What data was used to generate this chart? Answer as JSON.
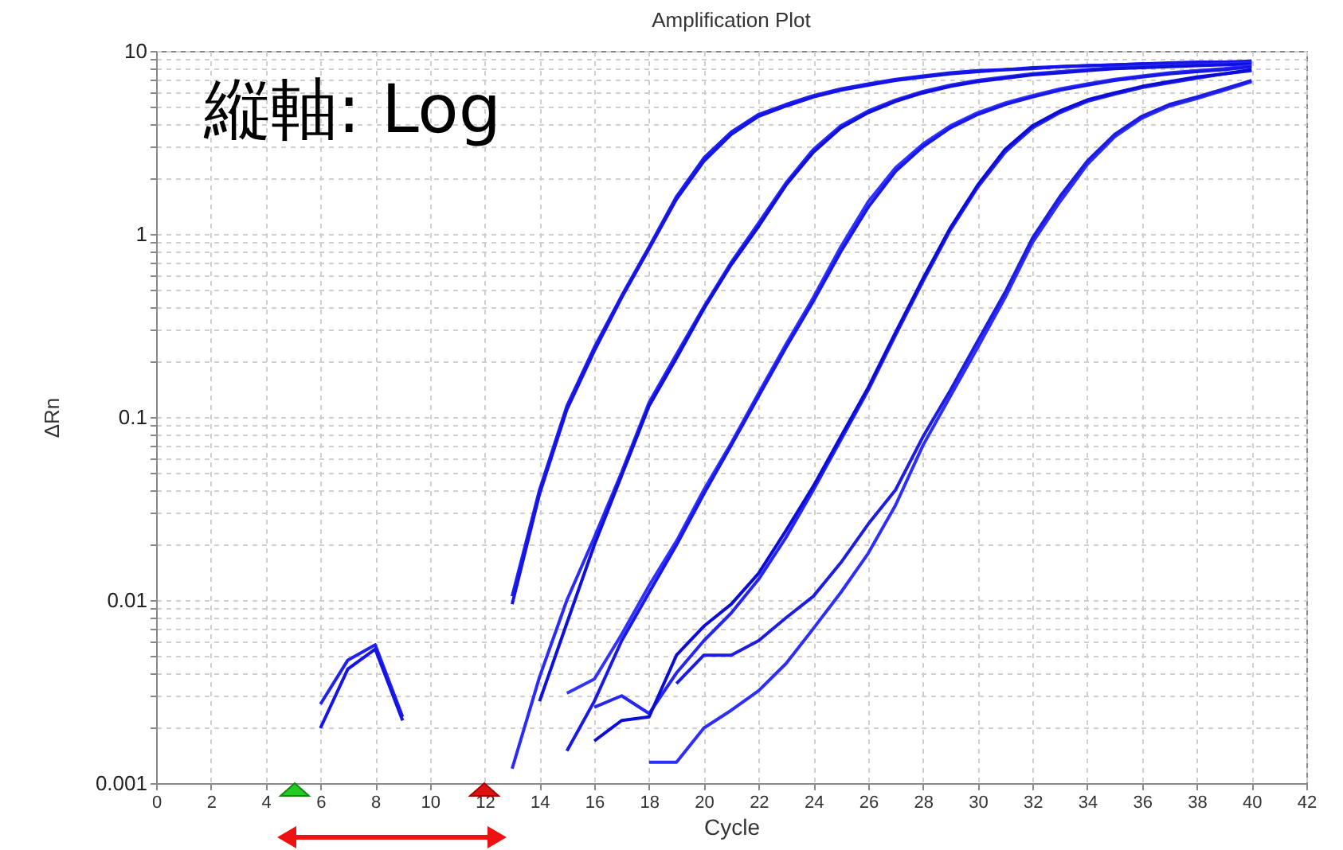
{
  "chart_data": {
    "type": "line",
    "title": "Amplification Plot",
    "xlabel": "Cycle",
    "ylabel": "ΔRn",
    "annotations": [
      "縦軸: Log"
    ],
    "log": "y",
    "grid": true,
    "legend": false,
    "marker": "none",
    "line_style": "solid",
    "xlim": [
      0,
      42
    ],
    "xticks": [
      0,
      2,
      4,
      6,
      8,
      10,
      12,
      14,
      16,
      18,
      20,
      22,
      24,
      26,
      28,
      30,
      32,
      34,
      36,
      38,
      40,
      42
    ],
    "ylim": [
      0.001,
      10
    ],
    "yticks": [
      0.001,
      {
        "value": 0.002,
        "label": null
      },
      {
        "value": 0.003,
        "label": null
      },
      {
        "value": 0.004,
        "label": null
      },
      {
        "value": 0.005,
        "label": null
      },
      {
        "value": 0.006,
        "label": null
      },
      {
        "value": 0.007,
        "label": null
      },
      {
        "value": 0.008,
        "label": null
      },
      {
        "value": 0.009,
        "label": null
      },
      0.01,
      {
        "value": 0.02,
        "label": null
      },
      {
        "value": 0.03,
        "label": null
      },
      {
        "value": 0.04,
        "label": null
      },
      {
        "value": 0.05,
        "label": null
      },
      {
        "value": 0.06,
        "label": null
      },
      {
        "value": 0.07,
        "label": null
      },
      {
        "value": 0.08,
        "label": null
      },
      {
        "value": 0.09,
        "label": null
      },
      0.1,
      {
        "value": 0.2,
        "label": null
      },
      {
        "value": 0.3,
        "label": null
      },
      {
        "value": 0.4,
        "label": null
      },
      {
        "value": 0.5,
        "label": null
      },
      {
        "value": 0.6,
        "label": null
      },
      {
        "value": 0.7,
        "label": null
      },
      {
        "value": 0.8,
        "label": null
      },
      {
        "value": 0.9,
        "label": null
      },
      1,
      {
        "value": 2,
        "label": null
      },
      {
        "value": 3,
        "label": null
      },
      {
        "value": 4,
        "label": null
      },
      {
        "value": 5,
        "label": null
      },
      {
        "value": 6,
        "label": null
      },
      {
        "value": 7,
        "label": null
      },
      {
        "value": 8,
        "label": null
      },
      {
        "value": 9,
        "label": null
      },
      10
    ],
    "x": [
      6,
      7,
      8,
      9,
      10,
      11,
      12,
      13,
      14,
      15,
      16,
      17,
      18,
      19,
      20,
      21,
      22,
      23,
      24,
      25,
      26,
      27,
      28,
      29,
      30,
      31,
      32,
      33,
      34,
      35,
      36,
      37,
      38,
      39,
      40
    ],
    "series": [
      {
        "color": "#2020f0",
        "values": [
          0.0027,
          0.0047,
          0.0057,
          0.0023,
          null,
          null,
          null,
          0.0105,
          0.04,
          0.115,
          0.24,
          0.46,
          0.85,
          1.6,
          2.6,
          3.6,
          4.5,
          5.1,
          5.7,
          6.2,
          6.6,
          7.0,
          7.3,
          7.6,
          7.8,
          7.9,
          8.1,
          8.2,
          8.3,
          8.4,
          8.5,
          8.6,
          8.7,
          8.7,
          8.8
        ]
      },
      {
        "color": "#1414e6",
        "values": [
          0.002,
          0.0042,
          0.0054,
          0.0022,
          null,
          null,
          null,
          0.0095,
          0.038,
          0.11,
          0.23,
          0.45,
          0.83,
          1.55,
          2.5,
          3.5,
          4.4,
          5.0,
          5.6,
          6.1,
          6.5,
          6.9,
          7.2,
          7.5,
          7.7,
          7.9,
          8.0,
          8.2,
          8.3,
          8.4,
          8.5,
          8.5,
          8.6,
          8.7,
          8.7
        ]
      },
      {
        "color": "#2a2afa",
        "values": [
          null,
          null,
          null,
          null,
          null,
          null,
          null,
          0.0012,
          0.0038,
          0.01,
          0.022,
          0.05,
          0.12,
          0.22,
          0.4,
          0.7,
          1.15,
          1.9,
          2.9,
          3.9,
          4.7,
          5.4,
          6.0,
          6.5,
          6.9,
          7.2,
          7.5,
          7.7,
          7.9,
          8.1,
          8.2,
          8.3,
          8.4,
          8.5,
          8.6
        ]
      },
      {
        "color": "#1010dc",
        "values": [
          null,
          null,
          null,
          null,
          null,
          null,
          null,
          null,
          0.0028,
          0.0075,
          0.02,
          0.048,
          0.115,
          0.21,
          0.39,
          0.68,
          1.1,
          1.85,
          2.8,
          3.8,
          4.6,
          5.3,
          5.9,
          6.4,
          6.8,
          7.1,
          7.4,
          7.6,
          7.8,
          8.0,
          8.1,
          8.2,
          8.3,
          8.4,
          8.5
        ]
      },
      {
        "color": "#3232ff",
        "values": [
          null,
          null,
          null,
          null,
          null,
          null,
          null,
          null,
          null,
          0.0031,
          0.0037,
          0.0065,
          0.012,
          0.021,
          0.04,
          0.072,
          0.135,
          0.25,
          0.45,
          0.85,
          1.5,
          2.3,
          3.1,
          3.9,
          4.6,
          5.2,
          5.7,
          6.2,
          6.6,
          7.0,
          7.3,
          7.6,
          7.8,
          8.0,
          8.3
        ]
      },
      {
        "color": "#1818ea",
        "values": [
          null,
          null,
          null,
          null,
          null,
          null,
          null,
          null,
          null,
          0.0015,
          0.0028,
          0.006,
          0.011,
          0.02,
          0.038,
          0.07,
          0.13,
          0.24,
          0.43,
          0.8,
          1.4,
          2.2,
          3.0,
          3.8,
          4.5,
          5.1,
          5.6,
          6.1,
          6.5,
          6.9,
          7.2,
          7.5,
          7.7,
          7.9,
          8.2
        ]
      },
      {
        "color": "#2626f4",
        "values": [
          null,
          null,
          null,
          null,
          null,
          null,
          null,
          null,
          null,
          null,
          0.0026,
          0.003,
          0.0024,
          0.004,
          0.006,
          0.0085,
          0.013,
          0.022,
          0.04,
          0.075,
          0.14,
          0.28,
          0.55,
          1.05,
          1.8,
          2.8,
          3.8,
          4.6,
          5.3,
          5.8,
          6.3,
          6.7,
          7.1,
          7.5,
          7.8
        ]
      },
      {
        "color": "#0c0cd8",
        "values": [
          null,
          null,
          null,
          null,
          null,
          null,
          null,
          null,
          null,
          null,
          0.0017,
          0.0022,
          0.0023,
          0.005,
          0.0072,
          0.0095,
          0.014,
          0.024,
          0.042,
          0.078,
          0.145,
          0.29,
          0.57,
          1.08,
          1.85,
          2.9,
          3.9,
          4.7,
          5.4,
          5.9,
          6.4,
          6.8,
          7.2,
          7.5,
          7.9
        ]
      },
      {
        "color": "#2e2efc",
        "values": [
          null,
          null,
          null,
          null,
          null,
          null,
          null,
          null,
          null,
          null,
          null,
          null,
          0.0013,
          0.0013,
          0.002,
          0.0025,
          0.0032,
          0.0045,
          0.007,
          0.011,
          0.018,
          0.033,
          0.07,
          0.13,
          0.24,
          0.45,
          0.9,
          1.5,
          2.4,
          3.4,
          4.3,
          5.0,
          5.5,
          6.1,
          6.8
        ]
      },
      {
        "color": "#1c1ce2",
        "values": [
          null,
          null,
          null,
          null,
          null,
          null,
          null,
          null,
          null,
          null,
          null,
          null,
          null,
          0.0035,
          0.005,
          0.005,
          0.006,
          0.008,
          0.0105,
          0.016,
          0.026,
          0.04,
          0.078,
          0.14,
          0.26,
          0.48,
          0.95,
          1.6,
          2.5,
          3.5,
          4.4,
          5.1,
          5.6,
          6.2,
          6.9
        ]
      }
    ]
  }
}
